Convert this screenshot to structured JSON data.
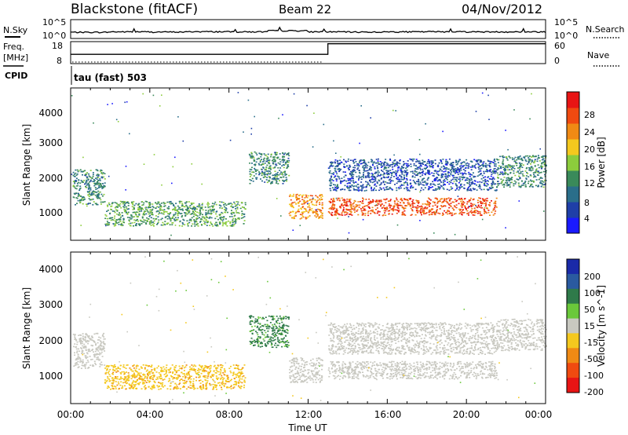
{
  "header": {
    "site": "Blackstone (fitACF)",
    "beam": "Beam 22",
    "date": "04/Nov/2012"
  },
  "top_panels": {
    "nsky_label": "N.Sky",
    "nsearch_label": "N.Search",
    "log_top": "10^5",
    "log_bottom": "10^0",
    "freq_label": "Freq.",
    "freq_unit": "[MHz]",
    "freq_ticks": [
      "18",
      "8"
    ],
    "nave_label": "Nave",
    "nave_ticks": [
      "60",
      "0"
    ],
    "cpid_label": "CPID",
    "cpid_value": "tau (fast) 503"
  },
  "colors": {
    "power_scale": [
      "#1a1aff",
      "#1f3fa8",
      "#2a6e8a",
      "#3a8a5a",
      "#8ccc3c",
      "#f4c81e",
      "#f08a14",
      "#f04a10",
      "#e81414"
    ],
    "velocity_scale": [
      "#1a2aa8",
      "#2a5aa0",
      "#2f7a4a",
      "#6ac83a",
      "#c8c8c0",
      "#f4c81e",
      "#f08a14",
      "#f04a10",
      "#e81414"
    ]
  },
  "chart_data": [
    {
      "type": "line",
      "title": "N.Sky / N.Search",
      "x_range_hours": [
        0,
        24
      ],
      "y_scale": "log",
      "ylim": [
        "10^0",
        "10^5"
      ],
      "series": [
        {
          "name": "N.Sky",
          "style": "solid",
          "x": [
            0,
            2,
            4,
            6,
            8,
            10,
            12,
            14,
            16,
            18,
            20,
            22,
            24
          ],
          "y": [
            30,
            40,
            35,
            45,
            40,
            90,
            40,
            35,
            40,
            45,
            40,
            40,
            30
          ]
        },
        {
          "name": "N.Search",
          "style": "dotted",
          "x": [],
          "y": []
        }
      ]
    },
    {
      "type": "line",
      "title": "Freq. / Nave",
      "x_range_hours": [
        0,
        24
      ],
      "ylim_left": [
        8,
        18
      ],
      "ylim_right": [
        0,
        60
      ],
      "series": [
        {
          "name": "Freq.",
          "style": "solid",
          "x": [
            0,
            13,
            13,
            24
          ],
          "y": [
            12.1,
            12.1,
            17.7,
            17.7
          ]
        },
        {
          "name": "Nave",
          "style": "dotted",
          "x": [],
          "y": []
        }
      ]
    },
    {
      "type": "heatmap",
      "title": "Power [dB]",
      "xlabel": "",
      "ylabel": "Slant Range [km]",
      "y_ticks": [
        "1000",
        "2000",
        "3000",
        "4000"
      ],
      "ylim": [
        180,
        4500
      ],
      "colorbar": {
        "label": "Power [dB]",
        "ticks": [
          "4",
          "8",
          "12",
          "16",
          "20",
          "24",
          "28"
        ]
      },
      "regions": [
        {
          "x": [
            0.1,
            1.7
          ],
          "y": [
            1200,
            2200
          ],
          "value": 12
        },
        {
          "x": [
            1.7,
            8.8
          ],
          "y": [
            600,
            1300
          ],
          "value": 14
        },
        {
          "x": [
            9.0,
            11.0
          ],
          "y": [
            1800,
            2700
          ],
          "value": 12
        },
        {
          "x": [
            11.0,
            12.7
          ],
          "y": [
            800,
            1500
          ],
          "value": 22
        },
        {
          "x": [
            13.0,
            21.5
          ],
          "y": [
            900,
            1400
          ],
          "value": 26
        },
        {
          "x": [
            13.0,
            21.5
          ],
          "y": [
            1600,
            2500
          ],
          "value": 8
        },
        {
          "x": [
            21.5,
            24.0
          ],
          "y": [
            1700,
            2600
          ],
          "value": 12
        }
      ]
    },
    {
      "type": "heatmap",
      "title": "Velocity [m s^-1]",
      "xlabel": "Time UT",
      "ylabel": "Slant Range [km]",
      "x_ticks": [
        "00:00",
        "04:00",
        "08:00",
        "12:00",
        "16:00",
        "20:00",
        "00:00"
      ],
      "y_ticks": [
        "1000",
        "2000",
        "3000",
        "4000"
      ],
      "ylim": [
        180,
        4500
      ],
      "colorbar": {
        "label": "Velocity [m s^-1]",
        "ticks": [
          "200",
          "100",
          "50",
          "15",
          "-15",
          "-50",
          "-100",
          "-200"
        ]
      },
      "regions": [
        {
          "x": [
            0.1,
            1.7
          ],
          "y": [
            1200,
            2200
          ],
          "value": 0
        },
        {
          "x": [
            1.7,
            8.8
          ],
          "y": [
            600,
            1300
          ],
          "value": -40
        },
        {
          "x": [
            9.0,
            11.0
          ],
          "y": [
            1800,
            2700
          ],
          "value": 40
        },
        {
          "x": [
            11.0,
            12.7
          ],
          "y": [
            800,
            1500
          ],
          "value": 0
        },
        {
          "x": [
            13.0,
            21.5
          ],
          "y": [
            900,
            1400
          ],
          "value": 0
        },
        {
          "x": [
            13.0,
            21.5
          ],
          "y": [
            1600,
            2500
          ],
          "value": 0
        },
        {
          "x": [
            21.5,
            24.0
          ],
          "y": [
            1700,
            2600
          ],
          "value": 0
        }
      ]
    }
  ]
}
